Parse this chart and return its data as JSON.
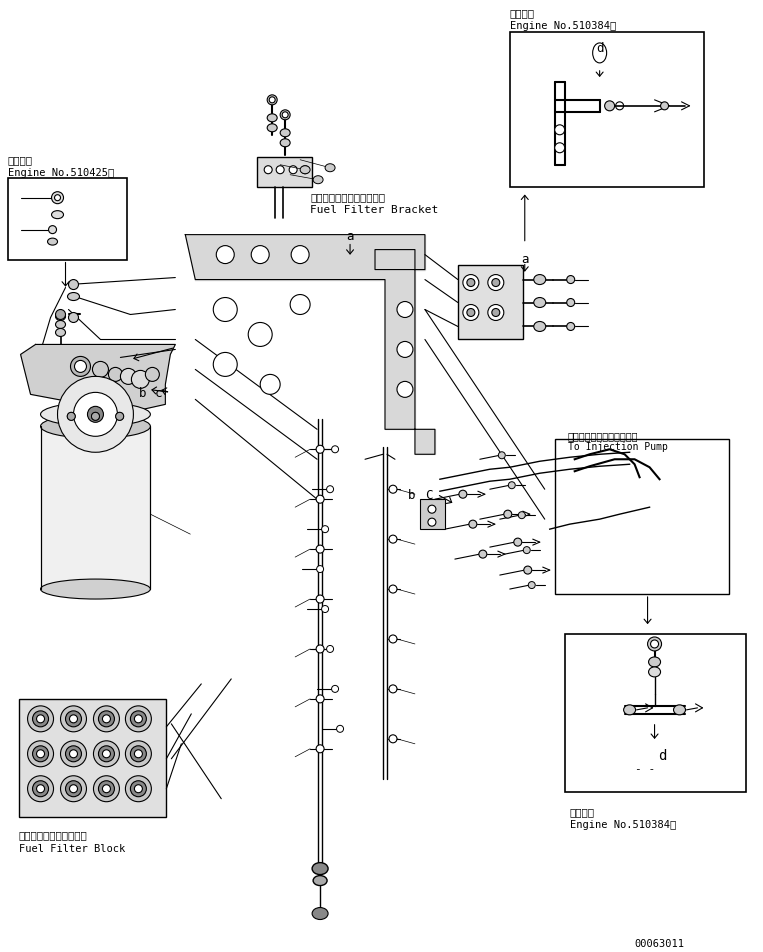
{
  "bg_color": "#ffffff",
  "line_color": "#000000",
  "fig_width": 7.63,
  "fig_height": 9.52,
  "dpi": 100,
  "part_number": "00063011",
  "top_left_label1": "適用号機",
  "top_left_label2": "Engine No.510425～",
  "top_right_label1": "適用号機",
  "top_right_label2": "Engine No.510384～",
  "center_label1": "フェルフィルタブラケット",
  "center_label2": "Fuel Filter Bracket",
  "bottom_left_label1": "フェルフィルタブロック",
  "bottom_left_label2": "Fuel Filter Block",
  "right_label1": "インジェクションポンプへ",
  "right_label2": "To Injection Pump",
  "bottom_right_label1": "適用号機",
  "bottom_right_label2": "Engine No.510384～"
}
